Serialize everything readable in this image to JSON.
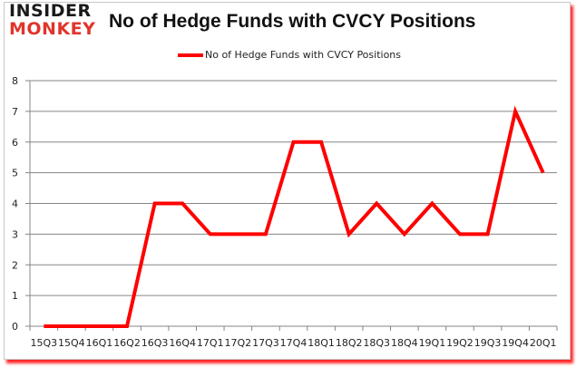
{
  "logo": {
    "line1": "INSIDER",
    "line2": "MONKEY"
  },
  "header": {
    "title": "No of Hedge Funds with CVCY Positions"
  },
  "legend": {
    "label": "No of Hedge Funds with CVCY Positions",
    "color": "#ff0000"
  },
  "chart_data": {
    "type": "line",
    "title": "No of Hedge Funds with CVCY Positions",
    "xlabel": "",
    "ylabel": "",
    "ylim": [
      0,
      8
    ],
    "yticks": [
      0,
      1,
      2,
      3,
      4,
      5,
      6,
      7,
      8
    ],
    "grid": true,
    "legend_position": "top",
    "categories": [
      "15Q3",
      "15Q4",
      "16Q1",
      "16Q2",
      "16Q3",
      "16Q4",
      "17Q1",
      "17Q2",
      "17Q3",
      "17Q4",
      "18Q1",
      "18Q2",
      "18Q3",
      "18Q4",
      "19Q1",
      "19Q2",
      "19Q3",
      "19Q4",
      "20Q1"
    ],
    "series": [
      {
        "name": "No of Hedge Funds with CVCY Positions",
        "color": "#ff0000",
        "values": [
          0,
          0,
          0,
          0,
          4,
          4,
          3,
          3,
          3,
          6,
          6,
          3,
          4,
          3,
          4,
          3,
          3,
          7,
          5
        ]
      }
    ]
  }
}
